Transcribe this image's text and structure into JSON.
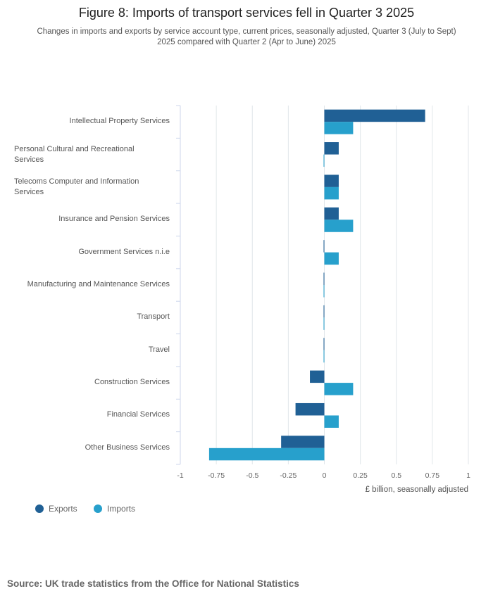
{
  "colors": {
    "exports": "#206095",
    "imports": "#27a0cc",
    "grid": "#e0e6ea",
    "axis": "#ccd6eb"
  },
  "chart_data": {
    "type": "bar",
    "orientation": "horizontal",
    "title": "Figure 8: Imports of transport services fell in Quarter 3 2025",
    "subtitle": "Changes in imports and exports by service account type, current prices, seasonally adjusted, Quarter 3 (July to Sept) 2025 compared with Quarter 2 (Apr to June) 2025",
    "categories": [
      "Intellectual Property Services",
      "Personal Cultural and Recreational Services",
      "Telecoms Computer and Information Services",
      "Insurance and Pension Services",
      "Government Services n.i.e",
      "Manufacturing and Maintenance Services",
      "Transport",
      "Travel",
      "Construction Services",
      "Financial Services",
      "Other Business Services"
    ],
    "series": [
      {
        "name": "Exports",
        "values": [
          0.7,
          0.1,
          0.1,
          0.1,
          -0.005,
          -0.005,
          -0.005,
          -0.005,
          -0.1,
          -0.2,
          -0.3
        ]
      },
      {
        "name": "Imports",
        "values": [
          0.2,
          -0.005,
          0.1,
          0.2,
          0.1,
          -0.005,
          -0.005,
          -0.005,
          0.2,
          0.1,
          -0.8
        ]
      }
    ],
    "xlim": [
      -1,
      1
    ],
    "xticks": [
      -1,
      -0.75,
      -0.5,
      -0.25,
      0,
      0.25,
      0.5,
      0.75,
      1
    ],
    "xtick_labels": [
      "-1",
      "-0.75",
      "-0.5",
      "-0.25",
      "0",
      "0.25",
      "0.5",
      "0.75",
      "1"
    ],
    "xlabel": "£ billion, seasonally adjusted",
    "legend": {
      "position": "bottom-left",
      "entries": [
        "Exports",
        "Imports"
      ]
    }
  },
  "source": "Source: UK trade statistics from the Office for National Statistics"
}
